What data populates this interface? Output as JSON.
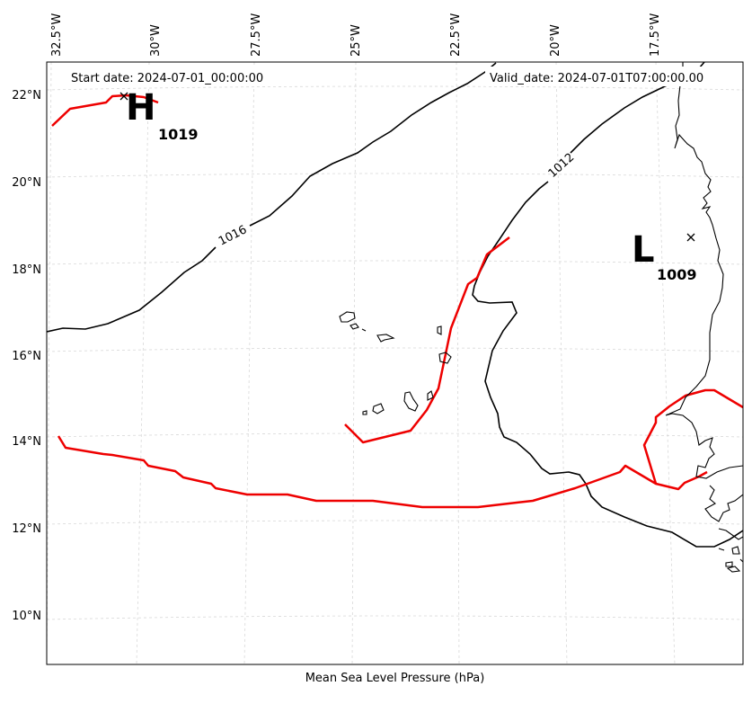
{
  "header": {
    "start_date": "Start date: 2024-07-01_00:00:00",
    "valid_date": "Valid_date: 2024-07-01T07:00:00.00"
  },
  "caption": "Mean Sea Level Pressure (hPa)",
  "axes": {
    "lon_ticks": [
      "32.5°W",
      "30°W",
      "27.5°W",
      "25°W",
      "22.5°W",
      "20°W",
      "17.5°W"
    ],
    "lat_ticks": [
      "22°N",
      "20°N",
      "18°N",
      "16°N",
      "14°N",
      "12°N",
      "10°N"
    ]
  },
  "isobars": [
    {
      "label": "1016"
    },
    {
      "label": "1012"
    }
  ],
  "pressure_centers": [
    {
      "type": "H",
      "value": "1019"
    },
    {
      "type": "L",
      "value": "1009"
    }
  ],
  "colors": {
    "isobar": "#000000",
    "front": "#ee0000",
    "coastline": "#000000",
    "grid": "#d0d0d0"
  }
}
